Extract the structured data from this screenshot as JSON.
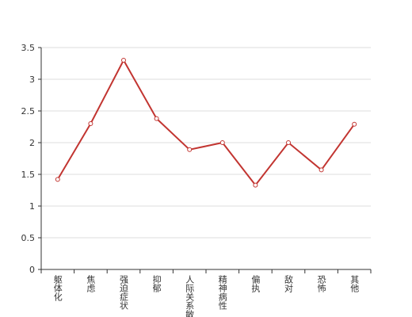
{
  "chart_data": {
    "type": "line",
    "categories": [
      "躯体化",
      "焦虑",
      "强迫症状",
      "抑郁",
      "人际关系敏感",
      "精神病性",
      "偏执",
      "敌对",
      "恐怖",
      "其他"
    ],
    "values": [
      1.42,
      2.3,
      3.3,
      2.38,
      1.89,
      2.0,
      1.33,
      2.0,
      1.57,
      2.29
    ],
    "color": "#c23531",
    "ylim": [
      0,
      3.5
    ],
    "yticks": [
      0,
      0.5,
      1,
      1.5,
      2,
      2.5,
      3,
      3.5
    ],
    "grid": true
  }
}
